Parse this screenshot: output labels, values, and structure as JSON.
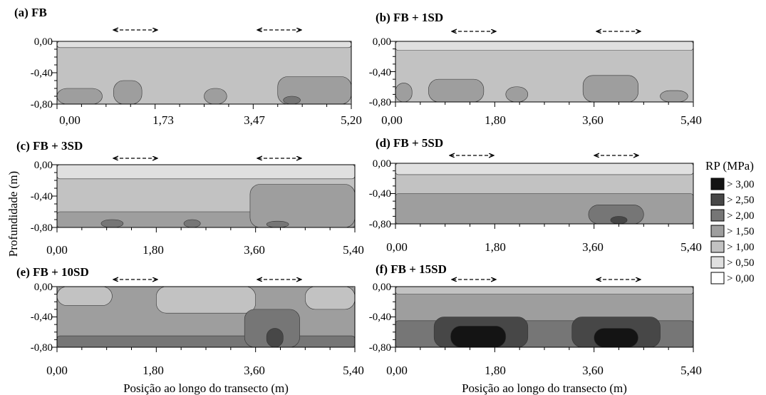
{
  "chart_data": {
    "type": "heatmap",
    "ylabel": "Profundidade (m)",
    "xlabel": "Posição ao longo do transecto (m)",
    "colors": {
      "0": "#ffffff",
      "1": "#e0e0e0",
      "2": "#c2c2c2",
      "3": "#9e9e9e",
      "4": "#767676",
      "5": "#474747",
      "6": "#141414"
    },
    "legend": {
      "title": "RP (MPa)",
      "placement": "right",
      "entries": [
        {
          "label": "> 3,00",
          "level": 6
        },
        {
          "label": "> 2,50",
          "level": 5
        },
        {
          "label": "> 2,00",
          "level": 4
        },
        {
          "label": "> 1,50",
          "level": 3
        },
        {
          "label": "> 1,00",
          "level": 2
        },
        {
          "label": "> 0,50",
          "level": 1
        },
        {
          "label": "> 0,00",
          "level": 0
        }
      ]
    },
    "panels": [
      {
        "title": "(a) FB",
        "x_ticks": [
          "0,00",
          "1,73",
          "3,47",
          "5,20"
        ],
        "y_ticks": [
          "0,00",
          "-0,40",
          "-0,80"
        ],
        "xlim": [
          0,
          5.2
        ],
        "ylim": [
          -0.8,
          0
        ],
        "zones": [
          {
            "x": [
              0,
              5.2
            ],
            "y": [
              -0.8,
              0
            ],
            "level": 2
          },
          {
            "x": [
              0,
              5.2
            ],
            "y": [
              -0.08,
              0
            ],
            "level": 1
          },
          {
            "x": [
              0,
              0.8
            ],
            "y": [
              -0.8,
              -0.6
            ],
            "level": 3
          },
          {
            "x": [
              1.0,
              1.5
            ],
            "y": [
              -0.8,
              -0.5
            ],
            "level": 3
          },
          {
            "x": [
              2.6,
              3.0
            ],
            "y": [
              -0.8,
              -0.6
            ],
            "level": 3
          },
          {
            "x": [
              3.9,
              5.2
            ],
            "y": [
              -0.8,
              -0.45
            ],
            "level": 3
          },
          {
            "x": [
              4.0,
              4.3
            ],
            "y": [
              -0.8,
              -0.7
            ],
            "level": 4
          }
        ]
      },
      {
        "title": "(b) FB + 1SD",
        "x_ticks": [
          "0,00",
          "1,80",
          "3,60",
          "5,40"
        ],
        "y_ticks": [
          "0,00",
          "-0,40",
          "-0,80"
        ],
        "xlim": [
          0,
          5.4
        ],
        "ylim": [
          -0.8,
          0
        ],
        "zones": [
          {
            "x": [
              0,
              5.4
            ],
            "y": [
              -0.8,
              0
            ],
            "level": 2
          },
          {
            "x": [
              0,
              5.4
            ],
            "y": [
              -0.12,
              0
            ],
            "level": 1
          },
          {
            "x": [
              0,
              0.3
            ],
            "y": [
              -0.8,
              -0.55
            ],
            "level": 3
          },
          {
            "x": [
              0.6,
              1.6
            ],
            "y": [
              -0.8,
              -0.5
            ],
            "level": 3
          },
          {
            "x": [
              2.0,
              2.4
            ],
            "y": [
              -0.8,
              -0.6
            ],
            "level": 3
          },
          {
            "x": [
              3.4,
              4.4
            ],
            "y": [
              -0.8,
              -0.45
            ],
            "level": 3
          },
          {
            "x": [
              4.8,
              5.3
            ],
            "y": [
              -0.8,
              -0.65
            ],
            "level": 3
          }
        ]
      },
      {
        "title": "(c) FB + 3SD",
        "x_ticks": [
          "0,00",
          "1,80",
          "3,60",
          "5,40"
        ],
        "y_ticks": [
          "0,00",
          "-0,40",
          "-0,80"
        ],
        "xlim": [
          0,
          5.4
        ],
        "ylim": [
          -0.8,
          0
        ],
        "zones": [
          {
            "x": [
              0,
              5.4
            ],
            "y": [
              -0.8,
              0
            ],
            "level": 2
          },
          {
            "x": [
              0,
              5.4
            ],
            "y": [
              -0.18,
              0
            ],
            "level": 1
          },
          {
            "x": [
              0,
              5.4
            ],
            "y": [
              -0.8,
              -0.6
            ],
            "level": 3
          },
          {
            "x": [
              3.5,
              5.4
            ],
            "y": [
              -0.8,
              -0.25
            ],
            "level": 3
          },
          {
            "x": [
              0.8,
              1.2
            ],
            "y": [
              -0.8,
              -0.7
            ],
            "level": 4
          },
          {
            "x": [
              2.3,
              2.6
            ],
            "y": [
              -0.8,
              -0.7
            ],
            "level": 4
          },
          {
            "x": [
              3.8,
              4.2
            ],
            "y": [
              -0.8,
              -0.72
            ],
            "level": 4
          }
        ]
      },
      {
        "title": "(d) FB + 5SD",
        "x_ticks": [
          "0,00",
          "1,80",
          "3,60",
          "5,40"
        ],
        "y_ticks": [
          "0,00",
          "-0,40",
          "-0,80"
        ],
        "xlim": [
          0,
          5.4
        ],
        "ylim": [
          -0.8,
          0
        ],
        "zones": [
          {
            "x": [
              0,
              5.4
            ],
            "y": [
              -0.8,
              0
            ],
            "level": 2
          },
          {
            "x": [
              0,
              5.4
            ],
            "y": [
              -0.15,
              0
            ],
            "level": 1
          },
          {
            "x": [
              0,
              5.4
            ],
            "y": [
              -0.8,
              -0.4
            ],
            "level": 3
          },
          {
            "x": [
              3.5,
              4.5
            ],
            "y": [
              -0.8,
              -0.55
            ],
            "level": 4
          },
          {
            "x": [
              3.9,
              4.2
            ],
            "y": [
              -0.8,
              -0.7
            ],
            "level": 5
          }
        ]
      },
      {
        "title": "(e) FB + 10SD",
        "x_ticks": [
          "0,00",
          "1,80",
          "3,60",
          "5,40"
        ],
        "y_ticks": [
          "0,00",
          "-0,40",
          "-0,80"
        ],
        "xlim": [
          0,
          5.4
        ],
        "ylim": [
          -0.8,
          0
        ],
        "zones": [
          {
            "x": [
              0,
              5.4
            ],
            "y": [
              -0.8,
              0
            ],
            "level": 3
          },
          {
            "x": [
              0,
              1.0
            ],
            "y": [
              -0.25,
              0
            ],
            "level": 2
          },
          {
            "x": [
              1.8,
              3.6
            ],
            "y": [
              -0.35,
              0
            ],
            "level": 2
          },
          {
            "x": [
              4.5,
              5.4
            ],
            "y": [
              -0.3,
              0
            ],
            "level": 2
          },
          {
            "x": [
              0,
              5.4
            ],
            "y": [
              -0.8,
              -0.65
            ],
            "level": 4
          },
          {
            "x": [
              3.4,
              4.4
            ],
            "y": [
              -0.8,
              -0.3
            ],
            "level": 4
          },
          {
            "x": [
              3.8,
              4.1
            ],
            "y": [
              -0.8,
              -0.55
            ],
            "level": 5
          }
        ]
      },
      {
        "title": "(f) FB + 15SD",
        "x_ticks": [
          "0,00",
          "1,80",
          "3,60",
          "5,40"
        ],
        "y_ticks": [
          "0,00",
          "-0,40",
          "-0,80"
        ],
        "xlim": [
          0,
          5.4
        ],
        "ylim": [
          -0.8,
          0
        ],
        "zones": [
          {
            "x": [
              0,
              5.4
            ],
            "y": [
              -0.8,
              0
            ],
            "level": 3
          },
          {
            "x": [
              0,
              5.4
            ],
            "y": [
              -0.1,
              0
            ],
            "level": 2
          },
          {
            "x": [
              0,
              5.4
            ],
            "y": [
              -0.8,
              -0.45
            ],
            "level": 4
          },
          {
            "x": [
              0.7,
              2.4
            ],
            "y": [
              -0.8,
              -0.4
            ],
            "level": 5
          },
          {
            "x": [
              3.2,
              4.8
            ],
            "y": [
              -0.8,
              -0.4
            ],
            "level": 5
          },
          {
            "x": [
              1.0,
              2.0
            ],
            "y": [
              -0.8,
              -0.52
            ],
            "level": 6
          },
          {
            "x": [
              3.6,
              4.4
            ],
            "y": [
              -0.8,
              -0.55
            ],
            "level": 6
          }
        ]
      }
    ]
  }
}
